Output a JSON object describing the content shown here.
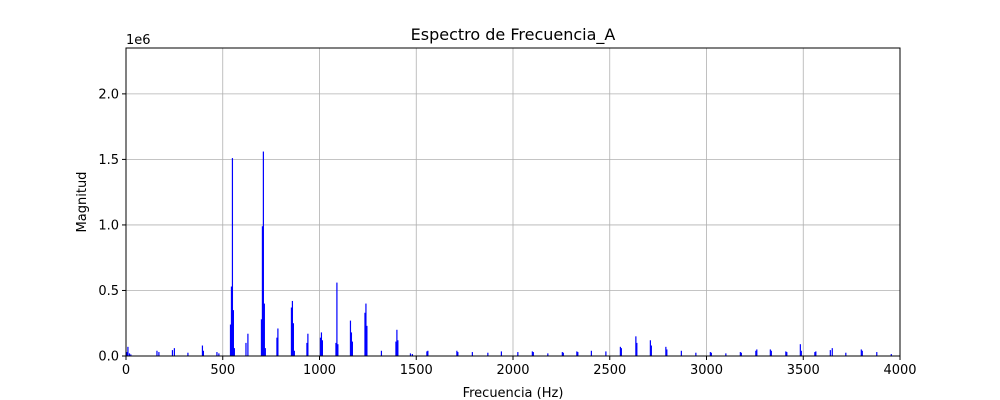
{
  "chart_data": {
    "type": "bar",
    "title": "Espectro de Frecuencia_A",
    "xlabel": "Frecuencia (Hz)",
    "ylabel": "Magnitud",
    "y_offset_label": "1e6",
    "y_scale": 1000000,
    "xlim": [
      0,
      4000
    ],
    "ylim": [
      0,
      2350000
    ],
    "x_ticks": [
      0,
      500,
      1000,
      1500,
      2000,
      2500,
      3000,
      3500,
      4000
    ],
    "x_tick_labels": [
      "0",
      "500",
      "1000",
      "1500",
      "2000",
      "2500",
      "3000",
      "3500",
      "4000"
    ],
    "y_ticks": [
      0,
      500000,
      1000000,
      1500000,
      2000000
    ],
    "y_tick_labels": [
      "0.0",
      "0.5",
      "1.0",
      "1.5",
      "2.0"
    ],
    "grid": true,
    "bar_color": "#0000ff",
    "series": [
      {
        "x": [
          5,
          10,
          18,
          25,
          160,
          170,
          240,
          250,
          320,
          395,
          400,
          470,
          480,
          540,
          545,
          550,
          555,
          560,
          620,
          630,
          700,
          705,
          710,
          715,
          720,
          780,
          785,
          855,
          860,
          865,
          870,
          935,
          940,
          1005,
          1010,
          1015,
          1085,
          1090,
          1095,
          1160,
          1165,
          1170,
          1235,
          1240,
          1245,
          1320,
          1395,
          1400,
          1405,
          1470,
          1480,
          1555,
          1560,
          1710,
          1715,
          1790,
          1870,
          1940,
          2025,
          2100,
          2105,
          2180,
          2255,
          2260,
          2330,
          2335,
          2405,
          2480,
          2555,
          2560,
          2635,
          2640,
          2710,
          2715,
          2790,
          2795,
          2870,
          2945,
          3020,
          3025,
          3100,
          3175,
          3180,
          3255,
          3260,
          3330,
          3335,
          3410,
          3415,
          3485,
          3490,
          3560,
          3565,
          3640,
          3650,
          3720,
          3800,
          3805,
          3880,
          3955
        ],
        "values": [
          30000,
          70000,
          20000,
          12000,
          40000,
          30000,
          45000,
          60000,
          25000,
          80000,
          40000,
          30000,
          20000,
          240000,
          530000,
          1510000,
          350000,
          60000,
          100000,
          170000,
          280000,
          990000,
          1560000,
          400000,
          60000,
          140000,
          210000,
          370000,
          420000,
          250000,
          40000,
          100000,
          170000,
          140000,
          180000,
          120000,
          100000,
          560000,
          90000,
          270000,
          180000,
          110000,
          330000,
          400000,
          230000,
          40000,
          110000,
          200000,
          120000,
          20000,
          15000,
          35000,
          40000,
          40000,
          30000,
          30000,
          25000,
          35000,
          30000,
          35000,
          30000,
          20000,
          30000,
          25000,
          35000,
          30000,
          40000,
          35000,
          70000,
          60000,
          150000,
          100000,
          120000,
          80000,
          70000,
          50000,
          40000,
          25000,
          30000,
          25000,
          20000,
          30000,
          25000,
          40000,
          50000,
          50000,
          40000,
          35000,
          30000,
          90000,
          40000,
          30000,
          35000,
          45000,
          60000,
          25000,
          50000,
          40000,
          30000,
          15000
        ]
      }
    ]
  }
}
